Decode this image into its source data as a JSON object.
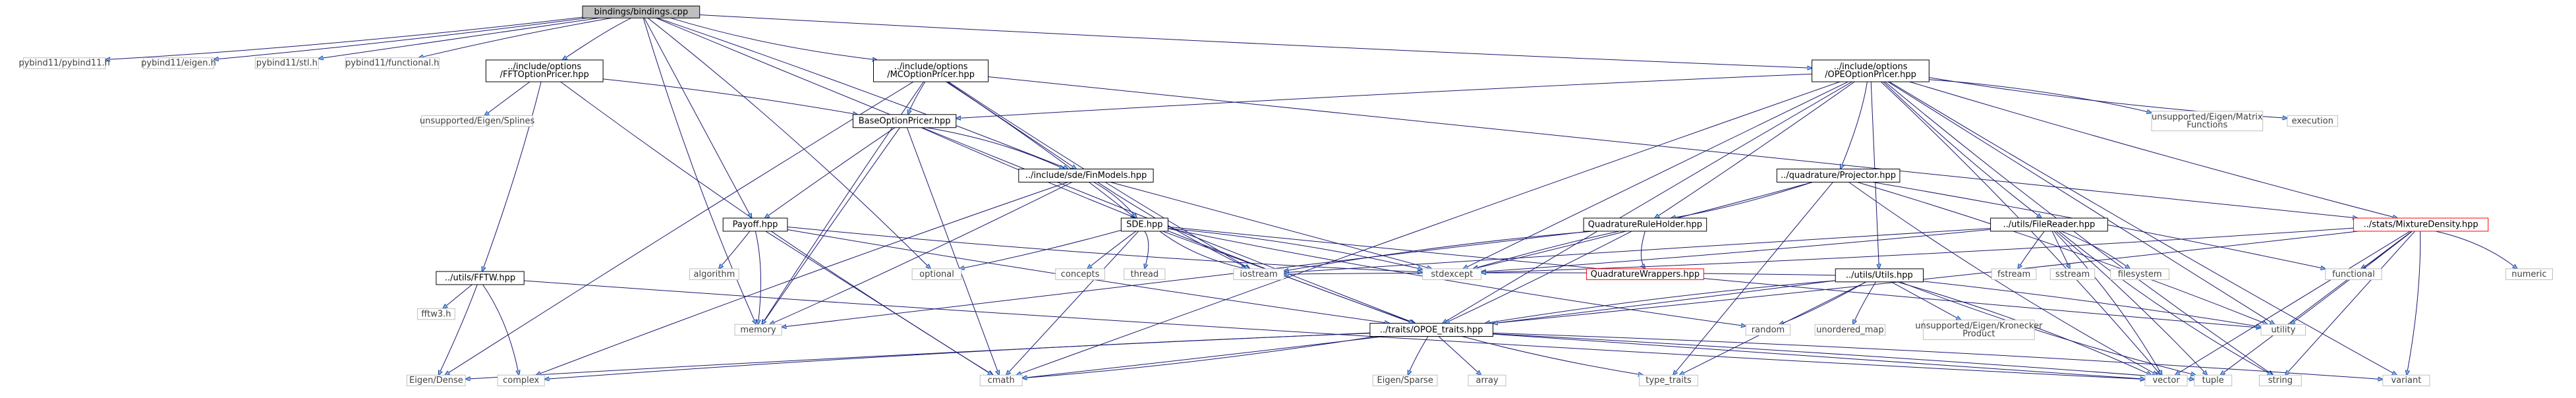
{
  "nodes": [
    {
      "id": "root",
      "label": "bindings/bindings.cpp",
      "style": "root"
    },
    {
      "id": "pyb11",
      "label": "pybind11/pybind11.h",
      "style": "ext"
    },
    {
      "id": "pybeigen",
      "label": "pybind11/eigen.h",
      "style": "ext"
    },
    {
      "id": "pybstl",
      "label": "pybind11/stl.h",
      "style": "ext"
    },
    {
      "id": "pybfunc",
      "label": "pybind11/functional.h",
      "style": "ext"
    },
    {
      "id": "fft",
      "label": [
        "../include/options",
        "/FFTOptionPricer.hpp"
      ],
      "style": "int"
    },
    {
      "id": "mco",
      "label": [
        "../include/options",
        "/MCOptionPricer.hpp"
      ],
      "style": "int"
    },
    {
      "id": "ope",
      "label": [
        "../include/options",
        "/OPEOptionPricer.hpp"
      ],
      "style": "int"
    },
    {
      "id": "splines",
      "label": "unsupported/Eigen/Splines",
      "style": "ext"
    },
    {
      "id": "base",
      "label": "BaseOptionPricer.hpp",
      "style": "int"
    },
    {
      "id": "finmodels",
      "label": "../include/sde/FinModels.hpp",
      "style": "int"
    },
    {
      "id": "payoff",
      "label": "Payoff.hpp",
      "style": "int"
    },
    {
      "id": "sde",
      "label": "SDE.hpp",
      "style": "int"
    },
    {
      "id": "fftw",
      "label": "../utils/FFTW.hpp",
      "style": "int"
    },
    {
      "id": "fftw3",
      "label": "fftw3.h",
      "style": "ext"
    },
    {
      "id": "eigendense",
      "label": "Eigen/Dense",
      "style": "ext"
    },
    {
      "id": "complex",
      "label": "complex",
      "style": "ext"
    },
    {
      "id": "algorithm",
      "label": "algorithm",
      "style": "ext"
    },
    {
      "id": "memory",
      "label": "memory",
      "style": "ext"
    },
    {
      "id": "optional",
      "label": "optional",
      "style": "ext"
    },
    {
      "id": "concepts",
      "label": "concepts",
      "style": "ext"
    },
    {
      "id": "thread",
      "label": "thread",
      "style": "ext"
    },
    {
      "id": "iostream",
      "label": "iostream",
      "style": "ext"
    },
    {
      "id": "stdexcept",
      "label": "stdexcept",
      "style": "ext"
    },
    {
      "id": "cmath",
      "label": "cmath",
      "style": "ext"
    },
    {
      "id": "traits",
      "label": "../traits/OPOE_traits.hpp",
      "style": "int"
    },
    {
      "id": "eigensparse",
      "label": "Eigen/Sparse",
      "style": "ext"
    },
    {
      "id": "array",
      "label": "array",
      "style": "ext"
    },
    {
      "id": "typetraits",
      "label": "type_traits",
      "style": "ext"
    },
    {
      "id": "vector",
      "label": "vector",
      "style": "ext"
    },
    {
      "id": "tuple",
      "label": "tuple",
      "style": "ext"
    },
    {
      "id": "string",
      "label": "string",
      "style": "ext"
    },
    {
      "id": "variant",
      "label": "variant",
      "style": "ext"
    },
    {
      "id": "qrh",
      "label": "QuadratureRuleHolder.hpp",
      "style": "int"
    },
    {
      "id": "qwrap",
      "label": "QuadratureWrappers.hpp",
      "style": "trunc"
    },
    {
      "id": "qproj",
      "label": "../quadrature/Projector.hpp",
      "style": "int"
    },
    {
      "id": "filereader",
      "label": "../utils/FileReader.hpp",
      "style": "int"
    },
    {
      "id": "utils",
      "label": "../utils/Utils.hpp",
      "style": "int"
    },
    {
      "id": "random",
      "label": "random",
      "style": "ext"
    },
    {
      "id": "unordered",
      "label": "unordered_map",
      "style": "ext"
    },
    {
      "id": "kronecker",
      "label": [
        "unsupported/Eigen/Kronecker",
        "Product"
      ],
      "style": "ext"
    },
    {
      "id": "utility",
      "label": "utility",
      "style": "ext"
    },
    {
      "id": "fstream",
      "label": "fstream",
      "style": "ext"
    },
    {
      "id": "sstream",
      "label": "sstream",
      "style": "ext"
    },
    {
      "id": "filesystem",
      "label": "filesystem",
      "style": "ext"
    },
    {
      "id": "matfunc",
      "label": [
        "unsupported/Eigen/Matrix",
        "Functions"
      ],
      "style": "ext"
    },
    {
      "id": "execution",
      "label": "execution",
      "style": "ext"
    },
    {
      "id": "mixture",
      "label": "../stats/MixtureDensity.hpp",
      "style": "trunc"
    },
    {
      "id": "functional",
      "label": "functional",
      "style": "ext"
    },
    {
      "id": "numeric",
      "label": "numeric",
      "style": "ext"
    }
  ],
  "edges": [
    [
      "root",
      "pyb11"
    ],
    [
      "root",
      "pybeigen"
    ],
    [
      "root",
      "pybstl"
    ],
    [
      "root",
      "pybfunc"
    ],
    [
      "root",
      "fft"
    ],
    [
      "root",
      "mco"
    ],
    [
      "root",
      "ope"
    ],
    [
      "root",
      "payoff"
    ],
    [
      "root",
      "finmodels"
    ],
    [
      "root",
      "optional"
    ],
    [
      "root",
      "memory"
    ],
    [
      "root",
      "traits"
    ],
    [
      "fft",
      "splines"
    ],
    [
      "fft",
      "base"
    ],
    [
      "fft",
      "fftw"
    ],
    [
      "fft",
      "cmath"
    ],
    [
      "mco",
      "base"
    ],
    [
      "mco",
      "finmodels"
    ],
    [
      "mco",
      "sde"
    ],
    [
      "mco",
      "eigendense"
    ],
    [
      "mco",
      "memory"
    ],
    [
      "mco",
      "iostream"
    ],
    [
      "mco",
      "mixture"
    ],
    [
      "ope",
      "base"
    ],
    [
      "ope",
      "qproj"
    ],
    [
      "ope",
      "qrh"
    ],
    [
      "ope",
      "filereader"
    ],
    [
      "ope",
      "utils"
    ],
    [
      "ope",
      "traits"
    ],
    [
      "ope",
      "matfunc"
    ],
    [
      "ope",
      "execution"
    ],
    [
      "ope",
      "mixture"
    ],
    [
      "ope",
      "stdexcept"
    ],
    [
      "ope",
      "cmath"
    ],
    [
      "ope",
      "vector"
    ],
    [
      "ope",
      "string"
    ],
    [
      "ope",
      "variant"
    ],
    [
      "ope",
      "utility"
    ],
    [
      "base",
      "payoff"
    ],
    [
      "base",
      "finmodels"
    ],
    [
      "base",
      "traits"
    ],
    [
      "base",
      "memory"
    ],
    [
      "base",
      "cmath"
    ],
    [
      "finmodels",
      "sde"
    ],
    [
      "finmodels",
      "complex"
    ],
    [
      "finmodels",
      "memory"
    ],
    [
      "finmodels",
      "iostream"
    ],
    [
      "finmodels",
      "stdexcept"
    ],
    [
      "payoff",
      "algorithm"
    ],
    [
      "payoff",
      "memory"
    ],
    [
      "payoff",
      "stdexcept"
    ],
    [
      "payoff",
      "traits"
    ],
    [
      "payoff",
      "cmath"
    ],
    [
      "sde",
      "concepts"
    ],
    [
      "sde",
      "thread"
    ],
    [
      "sde",
      "iostream"
    ],
    [
      "sde",
      "optional"
    ],
    [
      "sde",
      "traits"
    ],
    [
      "sde",
      "cmath"
    ],
    [
      "sde",
      "stdexcept"
    ],
    [
      "sde",
      "random"
    ],
    [
      "sde",
      "utility"
    ],
    [
      "fftw",
      "fftw3"
    ],
    [
      "fftw",
      "eigendense"
    ],
    [
      "fftw",
      "complex"
    ],
    [
      "fftw",
      "vector"
    ],
    [
      "traits",
      "eigensparse"
    ],
    [
      "traits",
      "array"
    ],
    [
      "traits",
      "eigendense"
    ],
    [
      "traits",
      "complex"
    ],
    [
      "traits",
      "cmath"
    ],
    [
      "traits",
      "typetraits"
    ],
    [
      "traits",
      "vector"
    ],
    [
      "traits",
      "tuple"
    ],
    [
      "traits",
      "variant"
    ],
    [
      "qrh",
      "qwrap"
    ],
    [
      "qrh",
      "traits"
    ],
    [
      "qrh",
      "memory"
    ],
    [
      "qrh",
      "stdexcept"
    ],
    [
      "qrh",
      "iostream"
    ],
    [
      "qproj",
      "qrh"
    ],
    [
      "qproj",
      "stdexcept"
    ],
    [
      "qproj",
      "typetraits"
    ],
    [
      "qproj",
      "functional"
    ],
    [
      "qproj",
      "utility"
    ],
    [
      "qproj",
      "vector"
    ],
    [
      "filereader",
      "fstream"
    ],
    [
      "filereader",
      "sstream"
    ],
    [
      "filereader",
      "filesystem"
    ],
    [
      "filereader",
      "vector"
    ],
    [
      "filereader",
      "string"
    ],
    [
      "filereader",
      "stdexcept"
    ],
    [
      "filereader",
      "iostream"
    ],
    [
      "filereader",
      "tuple"
    ],
    [
      "utils",
      "traits"
    ],
    [
      "utils",
      "random"
    ],
    [
      "utils",
      "unordered"
    ],
    [
      "utils",
      "kronecker"
    ],
    [
      "utils",
      "utility"
    ],
    [
      "utils",
      "vector"
    ],
    [
      "utils",
      "tuple"
    ],
    [
      "utils",
      "cmath"
    ],
    [
      "utils",
      "typetraits"
    ],
    [
      "utils",
      "iostream"
    ],
    [
      "mixture",
      "numeric"
    ],
    [
      "mixture",
      "functional"
    ],
    [
      "mixture",
      "utility"
    ],
    [
      "mixture",
      "vector"
    ],
    [
      "mixture",
      "string"
    ],
    [
      "mixture",
      "variant"
    ],
    [
      "mixture",
      "stdexcept"
    ],
    [
      "mixture",
      "traits"
    ],
    [
      "mixture",
      "tuple"
    ]
  ]
}
